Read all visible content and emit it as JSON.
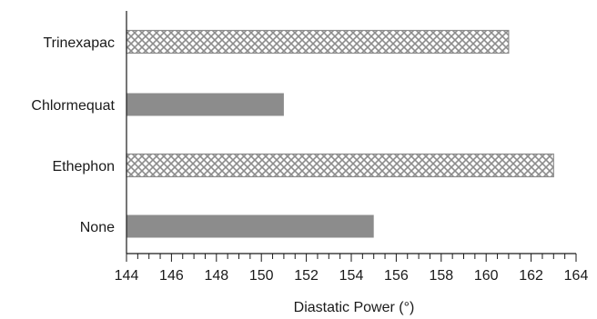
{
  "chart_data": {
    "type": "bar",
    "orientation": "horizontal",
    "categories": [
      "Trinexapac",
      "Chlormequat",
      "Ethephon",
      "None"
    ],
    "values": [
      161,
      151,
      163,
      155
    ],
    "bar_patterns": [
      "crosshatch",
      "solid",
      "crosshatch",
      "solid"
    ],
    "xlabel": "Diastatic Power (°)",
    "ylabel": "",
    "title": "",
    "xlim": [
      144,
      164
    ],
    "x_ticks": [
      "144",
      "146",
      "148",
      "150",
      "152",
      "154",
      "156",
      "158",
      "160",
      "162",
      "164"
    ],
    "grid": false,
    "legend": "none",
    "colors": {
      "solid_fill": "#8c8c8c",
      "hatch_stroke": "#8c8c8c",
      "axis": "#1a1a1a"
    }
  }
}
